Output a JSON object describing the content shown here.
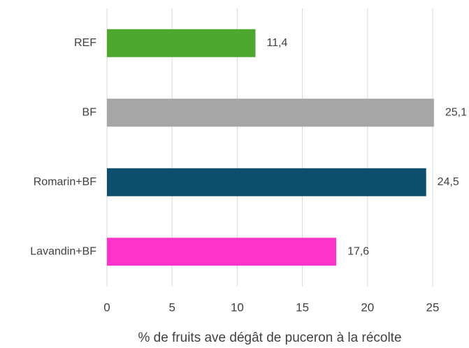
{
  "chart_data": {
    "type": "hbar",
    "categories": [
      "REF",
      "BF",
      "Romarin+BF",
      "Lavandin+BF"
    ],
    "values": [
      11.4,
      25.1,
      24.5,
      17.6
    ],
    "value_labels": [
      "11,4",
      "25,1",
      "24,5",
      "17,6"
    ],
    "colors": [
      "#4ea72e",
      "#a6a6a6",
      "#0b4f6c",
      "#ff33cc"
    ],
    "xlabel": "% de fruits ave dégât de puceron à la récolte",
    "xlim": [
      0,
      25
    ],
    "xticks": [
      0,
      5,
      10,
      15,
      20,
      25
    ],
    "grid": true
  }
}
